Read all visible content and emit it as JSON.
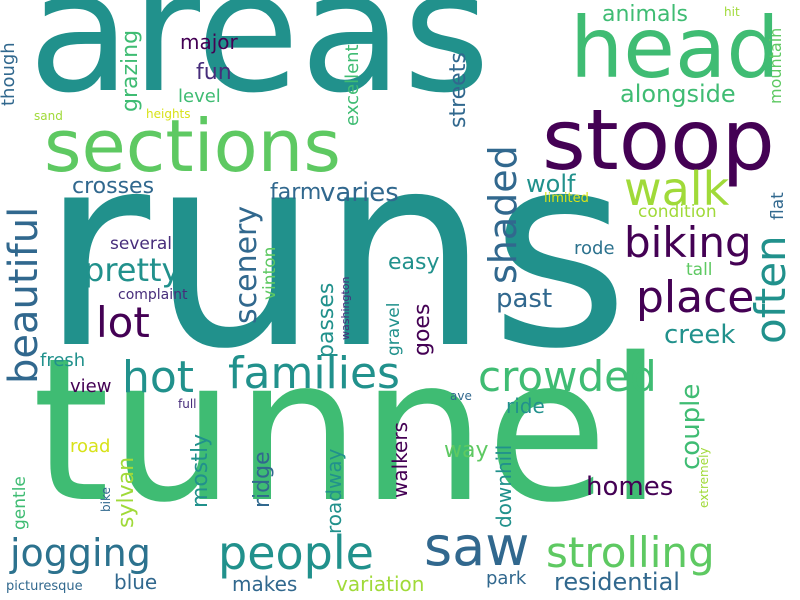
{
  "palette": {
    "teal": "#21918c",
    "green": "#3fbc73",
    "lightgreen": "#5ec962",
    "yellowgreen": "#a0da39",
    "yellow": "#d8e219",
    "darkpurple": "#440154",
    "indigo": "#3b528b",
    "blue": "#31688e",
    "navy": "#2c728e",
    "purple": "#472d7b"
  },
  "words": [
    {
      "text": "areas",
      "color": "#21918c"
    },
    {
      "text": "runs",
      "color": "#21918c"
    },
    {
      "text": "tunnel",
      "color": "#3fbc73"
    },
    {
      "text": "head",
      "color": "#3fbc73"
    },
    {
      "text": "sections",
      "color": "#5ec962"
    },
    {
      "text": "stoop",
      "color": "#440154"
    },
    {
      "text": "walk",
      "color": "#a0da39"
    },
    {
      "text": "biking",
      "color": "#440154"
    },
    {
      "text": "place",
      "color": "#440154"
    },
    {
      "text": "lot",
      "color": "#440154"
    },
    {
      "text": "pretty",
      "color": "#21918c"
    },
    {
      "text": "hot",
      "color": "#21918c"
    },
    {
      "text": "families",
      "color": "#21918c"
    },
    {
      "text": "crowded",
      "color": "#3fbc73"
    },
    {
      "text": "people",
      "color": "#21918c"
    },
    {
      "text": "saw",
      "color": "#31688e"
    },
    {
      "text": "strolling",
      "color": "#5ec962"
    },
    {
      "text": "jogging",
      "color": "#2c728e"
    },
    {
      "text": "often",
      "color": "#21918c"
    },
    {
      "text": "beautiful",
      "color": "#31688e"
    },
    {
      "text": "shaded",
      "color": "#31688e"
    },
    {
      "text": "scenery",
      "color": "#31688e"
    },
    {
      "text": "crosses",
      "color": "#31688e"
    },
    {
      "text": "varies",
      "color": "#31688e"
    },
    {
      "text": "farm",
      "color": "#31688e"
    },
    {
      "text": "wolf",
      "color": "#21918c"
    },
    {
      "text": "alongside",
      "color": "#3fbc73"
    },
    {
      "text": "animals",
      "color": "#3fbc73"
    },
    {
      "text": "major",
      "color": "#440154"
    },
    {
      "text": "fun",
      "color": "#472d7b"
    },
    {
      "text": "level",
      "color": "#3fbc73"
    },
    {
      "text": "grazing",
      "color": "#3fbc73"
    },
    {
      "text": "streets",
      "color": "#31688e"
    },
    {
      "text": "excellent",
      "color": "#3fbc73"
    },
    {
      "text": "though",
      "color": "#31688e"
    },
    {
      "text": "sand",
      "color": "#a0da39"
    },
    {
      "text": "heights",
      "color": "#d8e219"
    },
    {
      "text": "hit",
      "color": "#a0da39"
    },
    {
      "text": "mountain",
      "color": "#5ec962"
    },
    {
      "text": "limited",
      "color": "#d8e219"
    },
    {
      "text": "condition",
      "color": "#a0da39"
    },
    {
      "text": "flat",
      "color": "#31688e"
    },
    {
      "text": "several",
      "color": "#472d7b"
    },
    {
      "text": "vinton",
      "color": "#5ec962"
    },
    {
      "text": "easy",
      "color": "#21918c"
    },
    {
      "text": "rode",
      "color": "#2c728e"
    },
    {
      "text": "tall",
      "color": "#5ec962"
    },
    {
      "text": "past",
      "color": "#31688e"
    },
    {
      "text": "complaint",
      "color": "#472d7b"
    },
    {
      "text": "washington",
      "color": "#472d7b"
    },
    {
      "text": "passes",
      "color": "#21918c"
    },
    {
      "text": "goes",
      "color": "#440154"
    },
    {
      "text": "creek",
      "color": "#21918c"
    },
    {
      "text": "fresh",
      "color": "#21918c"
    },
    {
      "text": "gravel",
      "color": "#21918c"
    },
    {
      "text": "view",
      "color": "#440154"
    },
    {
      "text": "ave",
      "color": "#31688e"
    },
    {
      "text": "full",
      "color": "#472d7b"
    },
    {
      "text": "ride",
      "color": "#21918c"
    },
    {
      "text": "couple",
      "color": "#3fbc73"
    },
    {
      "text": "road",
      "color": "#d8e219"
    },
    {
      "text": "sylvan",
      "color": "#a0da39"
    },
    {
      "text": "mostly",
      "color": "#21918c"
    },
    {
      "text": "ridge",
      "color": "#31688e"
    },
    {
      "text": "roadway",
      "color": "#21918c"
    },
    {
      "text": "walkers",
      "color": "#440154"
    },
    {
      "text": "way",
      "color": "#5ec962"
    },
    {
      "text": "downhill",
      "color": "#21918c"
    },
    {
      "text": "homes",
      "color": "#440154"
    },
    {
      "text": "extremely",
      "color": "#a0da39"
    },
    {
      "text": "gentle",
      "color": "#3fbc73"
    },
    {
      "text": "bike",
      "color": "#31688e"
    },
    {
      "text": "blue",
      "color": "#31688e"
    },
    {
      "text": "makes",
      "color": "#31688e"
    },
    {
      "text": "variation",
      "color": "#a0da39"
    },
    {
      "text": "park",
      "color": "#31688e"
    },
    {
      "text": "residential",
      "color": "#31688e"
    },
    {
      "text": "picturesque",
      "color": "#31688e"
    }
  ]
}
